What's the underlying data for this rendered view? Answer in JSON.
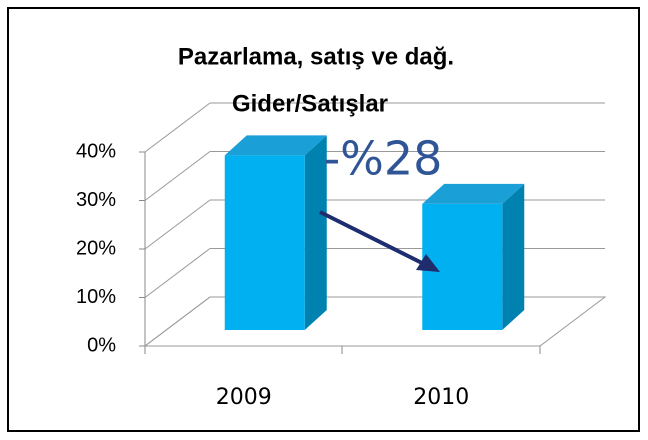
{
  "chart_data": {
    "type": "bar3d",
    "title": [
      "Pazarlama, satış ve dağ.",
      "Gider/Satışlar"
    ],
    "categories": [
      "2009",
      "2010"
    ],
    "values": [
      36,
      26
    ],
    "color": "#00b0f0",
    "ylim": [
      0,
      40
    ],
    "yticks": [
      {
        "value": 0,
        "label": "0%"
      },
      {
        "value": 10,
        "label": "10%"
      },
      {
        "value": 20,
        "label": "20%"
      },
      {
        "value": 30,
        "label": "30%"
      },
      {
        "value": 40,
        "label": "40%"
      }
    ],
    "grid": true,
    "annotation": "-%28"
  }
}
